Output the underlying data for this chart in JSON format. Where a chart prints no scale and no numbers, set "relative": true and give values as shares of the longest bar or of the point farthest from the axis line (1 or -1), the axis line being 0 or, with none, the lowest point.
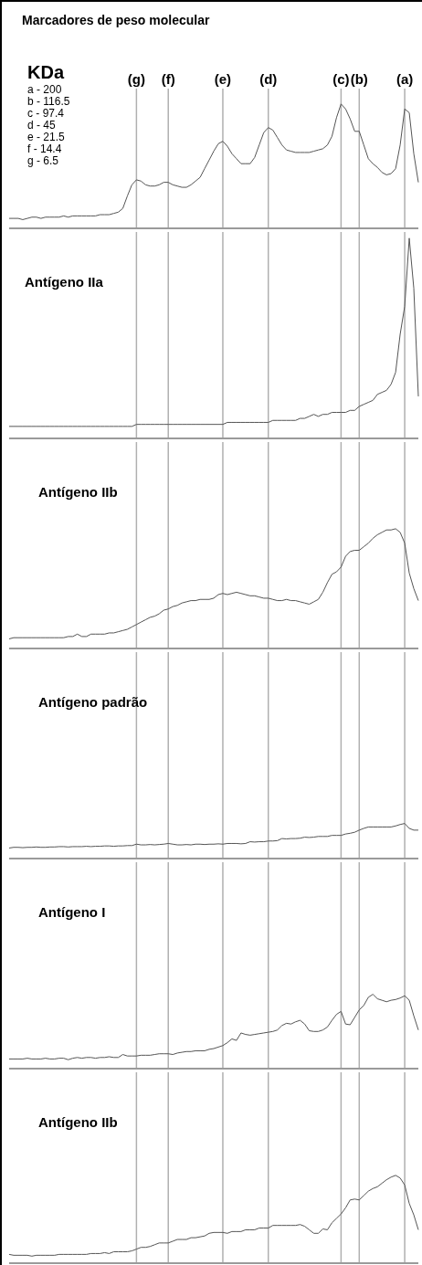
{
  "chart_data": [
    {
      "type": "line",
      "title": "Marcadores de peso molecular",
      "relative": true,
      "marker": "none",
      "color": "#555555",
      "grid": "x",
      "annotations": [
        "(g)",
        "(f)",
        "(e)",
        "(d)",
        "(c)",
        "(b)",
        "(a)",
        "KDa",
        "a - 200",
        "b - 116.5",
        "c - 97.4",
        "d - 45",
        "e - 21.5",
        "f - 14.4",
        "g - 6.5"
      ],
      "categories": [
        null,
        null,
        null,
        null,
        null,
        null,
        null,
        null,
        null,
        null,
        null,
        null,
        null,
        null,
        null,
        null,
        null,
        null,
        null,
        null,
        null,
        null,
        null,
        null,
        null,
        null,
        null,
        null,
        null,
        null,
        null,
        null,
        null,
        null,
        null,
        null,
        null,
        null,
        null,
        null,
        null,
        null,
        null,
        null,
        null,
        null,
        null,
        null,
        null,
        null,
        null,
        null,
        null,
        null,
        null,
        null,
        null,
        null,
        null,
        null,
        null,
        null,
        null,
        null,
        null,
        null,
        null,
        null,
        null,
        null,
        null,
        null,
        null,
        null,
        null,
        null,
        null,
        null,
        null,
        null,
        null,
        null,
        null,
        null,
        null,
        null,
        null,
        null,
        null,
        null,
        null
      ],
      "values": [
        0.08,
        0.08,
        0.08,
        0.07,
        0.08,
        0.09,
        0.09,
        0.08,
        0.09,
        0.09,
        0.09,
        0.09,
        0.1,
        0.09,
        0.1,
        0.1,
        0.1,
        0.1,
        0.1,
        0.1,
        0.11,
        0.11,
        0.11,
        0.12,
        0.13,
        0.16,
        0.26,
        0.35,
        0.39,
        0.38,
        0.35,
        0.34,
        0.34,
        0.35,
        0.37,
        0.37,
        0.35,
        0.34,
        0.33,
        0.33,
        0.35,
        0.38,
        0.41,
        0.48,
        0.55,
        0.62,
        0.68,
        0.7,
        0.66,
        0.6,
        0.56,
        0.52,
        0.52,
        0.52,
        0.57,
        0.67,
        0.77,
        0.81,
        0.79,
        0.73,
        0.67,
        0.63,
        0.62,
        0.61,
        0.61,
        0.61,
        0.61,
        0.62,
        0.63,
        0.64,
        0.67,
        0.74,
        0.89,
        1.0,
        0.96,
        0.88,
        0.78,
        0.78,
        0.67,
        0.56,
        0.52,
        0.49,
        0.45,
        0.43,
        0.44,
        0.48,
        0.67,
        0.96,
        0.93,
        0.6,
        0.37
      ]
    },
    {
      "type": "line",
      "title": "Antígeno IIa",
      "relative": true,
      "marker": "none",
      "color": "#555555",
      "grid": "x",
      "categories": [
        null,
        null,
        null,
        null,
        null,
        null,
        null,
        null,
        null,
        null,
        null,
        null,
        null,
        null,
        null,
        null,
        null,
        null,
        null,
        null,
        null,
        null,
        null,
        null,
        null,
        null,
        null,
        null,
        null,
        null,
        null,
        null,
        null,
        null,
        null,
        null,
        null,
        null,
        null,
        null,
        null,
        null,
        null,
        null,
        null,
        null,
        null,
        null,
        null,
        null,
        null,
        null,
        null,
        null,
        null,
        null,
        null,
        null,
        null,
        null,
        null,
        null,
        null,
        null,
        null,
        null,
        null,
        null,
        null,
        null,
        null,
        null,
        null,
        null,
        null,
        null,
        null,
        null,
        null,
        null,
        null,
        null,
        null,
        null,
        null,
        null,
        null,
        null,
        null,
        null,
        null
      ],
      "values": [
        0.06,
        0.06,
        0.06,
        0.06,
        0.06,
        0.06,
        0.06,
        0.06,
        0.06,
        0.06,
        0.06,
        0.06,
        0.06,
        0.06,
        0.06,
        0.06,
        0.06,
        0.06,
        0.06,
        0.06,
        0.06,
        0.06,
        0.06,
        0.06,
        0.06,
        0.06,
        0.06,
        0.06,
        0.07,
        0.07,
        0.07,
        0.07,
        0.07,
        0.07,
        0.07,
        0.07,
        0.07,
        0.07,
        0.07,
        0.07,
        0.07,
        0.07,
        0.07,
        0.07,
        0.07,
        0.07,
        0.07,
        0.07,
        0.08,
        0.08,
        0.08,
        0.08,
        0.08,
        0.08,
        0.08,
        0.08,
        0.08,
        0.08,
        0.09,
        0.09,
        0.09,
        0.09,
        0.09,
        0.09,
        0.1,
        0.1,
        0.11,
        0.12,
        0.11,
        0.12,
        0.12,
        0.13,
        0.13,
        0.13,
        0.13,
        0.14,
        0.14,
        0.16,
        0.17,
        0.18,
        0.19,
        0.22,
        0.23,
        0.24,
        0.27,
        0.33,
        0.52,
        0.66,
        1.0,
        0.75,
        0.21
      ]
    },
    {
      "type": "line",
      "title": "Antígeno IIb",
      "relative": true,
      "marker": "none",
      "color": "#555555",
      "grid": "x",
      "categories": [
        null,
        null,
        null,
        null,
        null,
        null,
        null,
        null,
        null,
        null,
        null,
        null,
        null,
        null,
        null,
        null,
        null,
        null,
        null,
        null,
        null,
        null,
        null,
        null,
        null,
        null,
        null,
        null,
        null,
        null,
        null,
        null,
        null,
        null,
        null,
        null,
        null,
        null,
        null,
        null,
        null,
        null,
        null,
        null,
        null,
        null,
        null,
        null,
        null,
        null,
        null,
        null,
        null,
        null,
        null,
        null,
        null,
        null,
        null,
        null,
        null,
        null,
        null,
        null,
        null,
        null,
        null,
        null,
        null,
        null,
        null,
        null,
        null,
        null,
        null,
        null,
        null,
        null,
        null,
        null,
        null,
        null,
        null,
        null,
        null,
        null,
        null,
        null,
        null,
        null,
        null
      ],
      "values": [
        0.08,
        0.09,
        0.09,
        0.09,
        0.09,
        0.09,
        0.09,
        0.09,
        0.09,
        0.09,
        0.09,
        0.09,
        0.09,
        0.1,
        0.1,
        0.12,
        0.1,
        0.1,
        0.12,
        0.12,
        0.12,
        0.12,
        0.13,
        0.13,
        0.14,
        0.15,
        0.16,
        0.18,
        0.2,
        0.22,
        0.24,
        0.26,
        0.27,
        0.29,
        0.32,
        0.33,
        0.35,
        0.36,
        0.38,
        0.39,
        0.4,
        0.4,
        0.41,
        0.41,
        0.41,
        0.42,
        0.45,
        0.46,
        0.45,
        0.46,
        0.47,
        0.46,
        0.45,
        0.44,
        0.44,
        0.43,
        0.42,
        0.42,
        0.41,
        0.4,
        0.4,
        0.41,
        0.4,
        0.4,
        0.39,
        0.38,
        0.37,
        0.39,
        0.41,
        0.47,
        0.55,
        0.62,
        0.64,
        0.68,
        0.77,
        0.81,
        0.82,
        0.82,
        0.85,
        0.88,
        0.92,
        0.95,
        0.97,
        0.99,
        0.99,
        1.0,
        0.97,
        0.88,
        0.63,
        0.5,
        0.4
      ]
    },
    {
      "type": "line",
      "title": "Antígeno padrão",
      "relative": true,
      "marker": "none",
      "color": "#555555",
      "grid": "x",
      "categories": [
        null,
        null,
        null,
        null,
        null,
        null,
        null,
        null,
        null,
        null,
        null,
        null,
        null,
        null,
        null,
        null,
        null,
        null,
        null,
        null,
        null,
        null,
        null,
        null,
        null,
        null,
        null,
        null,
        null,
        null,
        null,
        null,
        null,
        null,
        null,
        null,
        null,
        null,
        null,
        null,
        null,
        null,
        null,
        null,
        null,
        null,
        null,
        null,
        null,
        null,
        null,
        null,
        null,
        null,
        null,
        null,
        null,
        null,
        null,
        null,
        null,
        null,
        null,
        null,
        null,
        null,
        null,
        null,
        null,
        null,
        null,
        null,
        null,
        null,
        null,
        null,
        null,
        null,
        null,
        null,
        null,
        null,
        null,
        null,
        null,
        null,
        null,
        null,
        null,
        null,
        null
      ],
      "values": [
        0.3,
        0.32,
        0.32,
        0.31,
        0.32,
        0.32,
        0.33,
        0.32,
        0.32,
        0.33,
        0.33,
        0.34,
        0.34,
        0.33,
        0.34,
        0.34,
        0.34,
        0.35,
        0.34,
        0.35,
        0.35,
        0.36,
        0.36,
        0.35,
        0.36,
        0.36,
        0.37,
        0.37,
        0.41,
        0.39,
        0.39,
        0.4,
        0.39,
        0.4,
        0.41,
        0.43,
        0.41,
        0.39,
        0.39,
        0.4,
        0.39,
        0.41,
        0.41,
        0.4,
        0.41,
        0.41,
        0.42,
        0.41,
        0.43,
        0.43,
        0.43,
        0.42,
        0.43,
        0.48,
        0.47,
        0.48,
        0.48,
        0.5,
        0.5,
        0.51,
        0.57,
        0.56,
        0.57,
        0.57,
        0.58,
        0.61,
        0.6,
        0.61,
        0.63,
        0.63,
        0.63,
        0.66,
        0.66,
        0.66,
        0.7,
        0.72,
        0.75,
        0.81,
        0.86,
        0.9,
        0.9,
        0.9,
        0.9,
        0.9,
        0.9,
        0.93,
        0.97,
        1.0,
        0.86,
        0.81,
        0.81
      ]
    },
    {
      "type": "line",
      "title": "Antígeno I",
      "relative": true,
      "marker": "none",
      "color": "#555555",
      "grid": "x",
      "categories": [
        null,
        null,
        null,
        null,
        null,
        null,
        null,
        null,
        null,
        null,
        null,
        null,
        null,
        null,
        null,
        null,
        null,
        null,
        null,
        null,
        null,
        null,
        null,
        null,
        null,
        null,
        null,
        null,
        null,
        null,
        null,
        null,
        null,
        null,
        null,
        null,
        null,
        null,
        null,
        null,
        null,
        null,
        null,
        null,
        null,
        null,
        null,
        null,
        null,
        null,
        null,
        null,
        null,
        null,
        null,
        null,
        null,
        null,
        null,
        null,
        null,
        null,
        null,
        null,
        null,
        null,
        null,
        null,
        null,
        null,
        null,
        null,
        null,
        null,
        null,
        null,
        null,
        null,
        null,
        null,
        null,
        null,
        null,
        null,
        null,
        null,
        null,
        null,
        null,
        null,
        null
      ],
      "values": [
        0.13,
        0.13,
        0.13,
        0.13,
        0.14,
        0.13,
        0.13,
        0.13,
        0.14,
        0.13,
        0.13,
        0.14,
        0.14,
        0.12,
        0.14,
        0.15,
        0.14,
        0.15,
        0.15,
        0.14,
        0.15,
        0.15,
        0.16,
        0.15,
        0.15,
        0.19,
        0.17,
        0.17,
        0.17,
        0.18,
        0.18,
        0.18,
        0.19,
        0.2,
        0.2,
        0.2,
        0.19,
        0.21,
        0.22,
        0.23,
        0.23,
        0.24,
        0.24,
        0.24,
        0.26,
        0.27,
        0.29,
        0.31,
        0.35,
        0.4,
        0.38,
        0.48,
        0.46,
        0.45,
        0.46,
        0.47,
        0.48,
        0.49,
        0.5,
        0.52,
        0.58,
        0.61,
        0.6,
        0.63,
        0.65,
        0.6,
        0.51,
        0.5,
        0.5,
        0.52,
        0.56,
        0.65,
        0.73,
        0.77,
        0.6,
        0.59,
        0.69,
        0.79,
        0.85,
        0.96,
        1.0,
        0.94,
        0.92,
        0.9,
        0.92,
        0.93,
        0.95,
        0.98,
        0.92,
        0.71,
        0.52
      ]
    },
    {
      "type": "line",
      "title": "Antígeno IIb",
      "relative": true,
      "marker": "none",
      "color": "#555555",
      "grid": "x",
      "categories": [
        null,
        null,
        null,
        null,
        null,
        null,
        null,
        null,
        null,
        null,
        null,
        null,
        null,
        null,
        null,
        null,
        null,
        null,
        null,
        null,
        null,
        null,
        null,
        null,
        null,
        null,
        null,
        null,
        null,
        null,
        null,
        null,
        null,
        null,
        null,
        null,
        null,
        null,
        null,
        null,
        null,
        null,
        null,
        null,
        null,
        null,
        null,
        null,
        null,
        null,
        null,
        null,
        null,
        null,
        null,
        null,
        null,
        null,
        null,
        null,
        null,
        null,
        null,
        null,
        null,
        null,
        null,
        null,
        null,
        null,
        null,
        null,
        null,
        null,
        null,
        null,
        null,
        null,
        null,
        null,
        null,
        null,
        null,
        null,
        null,
        null,
        null,
        null,
        null,
        null,
        null
      ],
      "values": [
        0.1,
        0.09,
        0.09,
        0.09,
        0.09,
        0.08,
        0.09,
        0.09,
        0.09,
        0.09,
        0.09,
        0.1,
        0.1,
        0.1,
        0.1,
        0.1,
        0.1,
        0.1,
        0.11,
        0.11,
        0.11,
        0.12,
        0.11,
        0.13,
        0.13,
        0.13,
        0.13,
        0.14,
        0.16,
        0.18,
        0.18,
        0.19,
        0.21,
        0.23,
        0.23,
        0.23,
        0.25,
        0.27,
        0.27,
        0.27,
        0.29,
        0.29,
        0.3,
        0.31,
        0.34,
        0.35,
        0.35,
        0.35,
        0.34,
        0.36,
        0.36,
        0.36,
        0.38,
        0.38,
        0.38,
        0.4,
        0.4,
        0.4,
        0.43,
        0.43,
        0.43,
        0.43,
        0.43,
        0.43,
        0.44,
        0.42,
        0.38,
        0.34,
        0.34,
        0.39,
        0.38,
        0.46,
        0.51,
        0.56,
        0.63,
        0.72,
        0.73,
        0.72,
        0.77,
        0.82,
        0.85,
        0.87,
        0.91,
        0.95,
        0.98,
        1.0,
        0.97,
        0.89,
        0.68,
        0.55,
        0.38
      ]
    }
  ]
}
